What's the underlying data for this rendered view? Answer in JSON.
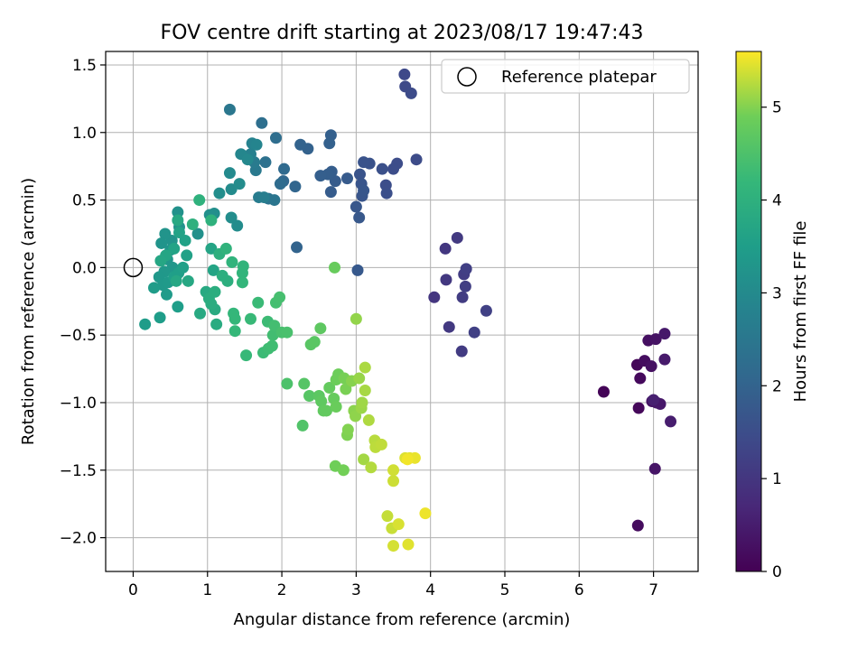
{
  "chart_data": {
    "type": "scatter",
    "title": "FOV centre drift starting at 2023/08/17 19:47:43",
    "xlabel": "Angular distance from reference (arcmin)",
    "ylabel": "Rotation from reference (arcmin)",
    "xlim": [
      -0.37,
      7.6
    ],
    "ylim": [
      -2.25,
      1.6
    ],
    "xticks": [
      0,
      1,
      2,
      3,
      4,
      5,
      6,
      7
    ],
    "yticks": [
      1.5,
      1.0,
      0.5,
      0.0,
      -0.5,
      -1.0,
      -1.5,
      -2.0
    ],
    "xtick_labels": [
      "0",
      "1",
      "2",
      "3",
      "4",
      "5",
      "6",
      "7"
    ],
    "ytick_labels": [
      "1.5",
      "1.0",
      "0.5",
      "0.0",
      "−0.5",
      "−1.0",
      "−1.5",
      "−2.0"
    ],
    "grid": true,
    "legend": {
      "position": "top-right",
      "entries": [
        {
          "label": "Reference platepar",
          "marker": "hollow-circle"
        }
      ]
    },
    "reference_point": {
      "x": 0.0,
      "y": 0.0
    },
    "colorbar": {
      "label": "Hours from first FF file",
      "colormap": "viridis",
      "range": [
        0,
        5.6
      ],
      "ticks": [
        0,
        1,
        2,
        3,
        4,
        5
      ],
      "tick_labels": [
        "0",
        "1",
        "2",
        "3",
        "4",
        "5"
      ]
    },
    "points": [
      {
        "x": 6.33,
        "y": -0.92,
        "h": 0.05
      },
      {
        "x": 6.78,
        "y": -0.72,
        "h": 0.1
      },
      {
        "x": 6.8,
        "y": -1.04,
        "h": 0.12
      },
      {
        "x": 6.82,
        "y": -0.82,
        "h": 0.15
      },
      {
        "x": 6.79,
        "y": -1.91,
        "h": 0.2
      },
      {
        "x": 6.88,
        "y": -0.69,
        "h": 0.22
      },
      {
        "x": 6.93,
        "y": -0.54,
        "h": 0.25
      },
      {
        "x": 6.97,
        "y": -0.73,
        "h": 0.28
      },
      {
        "x": 6.98,
        "y": -0.99,
        "h": 0.3
      },
      {
        "x": 7.03,
        "y": -0.53,
        "h": 0.32
      },
      {
        "x": 7.02,
        "y": -1.49,
        "h": 0.35
      },
      {
        "x": 7.04,
        "y": -1.0,
        "h": 0.38
      },
      {
        "x": 7.09,
        "y": -1.01,
        "h": 0.4
      },
      {
        "x": 7.15,
        "y": -0.49,
        "h": 0.42
      },
      {
        "x": 7.15,
        "y": -0.68,
        "h": 0.45
      },
      {
        "x": 7.23,
        "y": -1.14,
        "h": 0.5
      },
      {
        "x": 7.0,
        "y": -0.98,
        "h": 0.55
      },
      {
        "x": 4.05,
        "y": -0.22,
        "h": 1.0
      },
      {
        "x": 4.2,
        "y": 0.14,
        "h": 1.02
      },
      {
        "x": 4.21,
        "y": -0.09,
        "h": 1.04
      },
      {
        "x": 4.25,
        "y": -0.44,
        "h": 1.06
      },
      {
        "x": 4.36,
        "y": 0.22,
        "h": 1.08
      },
      {
        "x": 4.42,
        "y": -0.62,
        "h": 1.1
      },
      {
        "x": 4.43,
        "y": -0.22,
        "h": 1.12
      },
      {
        "x": 4.45,
        "y": -0.05,
        "h": 1.14
      },
      {
        "x": 4.47,
        "y": -0.14,
        "h": 1.16
      },
      {
        "x": 4.48,
        "y": -0.01,
        "h": 1.18
      },
      {
        "x": 4.59,
        "y": -0.48,
        "h": 1.2
      },
      {
        "x": 4.75,
        "y": -0.32,
        "h": 1.22
      },
      {
        "x": 3.65,
        "y": 1.43,
        "h": 1.4
      },
      {
        "x": 3.66,
        "y": 1.34,
        "h": 1.42
      },
      {
        "x": 3.74,
        "y": 1.29,
        "h": 1.44
      },
      {
        "x": 3.81,
        "y": 0.8,
        "h": 1.46
      },
      {
        "x": 3.55,
        "y": 0.77,
        "h": 1.48
      },
      {
        "x": 3.5,
        "y": 0.73,
        "h": 1.5
      },
      {
        "x": 3.4,
        "y": 0.61,
        "h": 1.52
      },
      {
        "x": 3.41,
        "y": 0.55,
        "h": 1.54
      },
      {
        "x": 3.35,
        "y": 0.73,
        "h": 1.56
      },
      {
        "x": 3.18,
        "y": 0.77,
        "h": 1.6
      },
      {
        "x": 3.1,
        "y": 0.78,
        "h": 1.62
      },
      {
        "x": 3.05,
        "y": 0.69,
        "h": 1.64
      },
      {
        "x": 3.07,
        "y": 0.62,
        "h": 1.66
      },
      {
        "x": 3.08,
        "y": 0.53,
        "h": 1.68
      },
      {
        "x": 3.1,
        "y": 0.57,
        "h": 1.7
      },
      {
        "x": 3.0,
        "y": 0.45,
        "h": 1.72
      },
      {
        "x": 3.04,
        "y": 0.37,
        "h": 1.74
      },
      {
        "x": 3.02,
        "y": -0.02,
        "h": 1.76
      },
      {
        "x": 2.88,
        "y": 0.66,
        "h": 1.8
      },
      {
        "x": 2.72,
        "y": 0.64,
        "h": 1.82
      },
      {
        "x": 2.66,
        "y": 0.56,
        "h": 1.84
      },
      {
        "x": 2.67,
        "y": 0.71,
        "h": 1.86
      },
      {
        "x": 2.62,
        "y": 0.69,
        "h": 1.88
      },
      {
        "x": 2.52,
        "y": 0.68,
        "h": 1.9
      },
      {
        "x": 2.66,
        "y": 0.98,
        "h": 1.92
      },
      {
        "x": 2.64,
        "y": 0.92,
        "h": 1.94
      },
      {
        "x": 2.35,
        "y": 0.88,
        "h": 1.96
      },
      {
        "x": 2.25,
        "y": 0.91,
        "h": 1.98
      },
      {
        "x": 2.2,
        "y": 0.15,
        "h": 2.0
      },
      {
        "x": 2.18,
        "y": 0.6,
        "h": 2.05
      },
      {
        "x": 2.02,
        "y": 0.64,
        "h": 2.1
      },
      {
        "x": 2.03,
        "y": 0.73,
        "h": 2.15
      },
      {
        "x": 1.98,
        "y": 0.62,
        "h": 2.2
      },
      {
        "x": 1.92,
        "y": 0.96,
        "h": 2.25
      },
      {
        "x": 1.73,
        "y": 1.07,
        "h": 2.3
      },
      {
        "x": 1.78,
        "y": 0.78,
        "h": 2.35
      },
      {
        "x": 1.82,
        "y": 0.51,
        "h": 2.4
      },
      {
        "x": 1.9,
        "y": 0.5,
        "h": 2.45
      },
      {
        "x": 1.3,
        "y": 1.17,
        "h": 2.5
      },
      {
        "x": 1.65,
        "y": 0.72,
        "h": 2.55
      },
      {
        "x": 1.63,
        "y": 0.78,
        "h": 2.6
      },
      {
        "x": 1.69,
        "y": 0.52,
        "h": 2.65
      },
      {
        "x": 1.76,
        "y": 0.52,
        "h": 2.7
      },
      {
        "x": 1.58,
        "y": 0.84,
        "h": 2.75
      },
      {
        "x": 1.6,
        "y": 0.92,
        "h": 2.8
      },
      {
        "x": 1.66,
        "y": 0.91,
        "h": 2.85
      },
      {
        "x": 1.45,
        "y": 0.84,
        "h": 2.9
      },
      {
        "x": 1.54,
        "y": 0.8,
        "h": 2.95
      },
      {
        "x": 1.3,
        "y": 0.7,
        "h": 3.0
      },
      {
        "x": 1.32,
        "y": 0.58,
        "h": 3.02
      },
      {
        "x": 1.43,
        "y": 0.62,
        "h": 3.04
      },
      {
        "x": 1.4,
        "y": 0.31,
        "h": 3.06
      },
      {
        "x": 1.32,
        "y": 0.37,
        "h": 3.08
      },
      {
        "x": 1.16,
        "y": 0.55,
        "h": 3.1
      },
      {
        "x": 1.09,
        "y": 0.4,
        "h": 3.12
      },
      {
        "x": 1.03,
        "y": 0.39,
        "h": 3.14
      },
      {
        "x": 0.87,
        "y": 0.25,
        "h": 3.16
      },
      {
        "x": 0.6,
        "y": 0.41,
        "h": 3.18
      },
      {
        "x": 0.62,
        "y": 0.3,
        "h": 3.2
      },
      {
        "x": 0.52,
        "y": 0.2,
        "h": 3.22
      },
      {
        "x": 0.43,
        "y": 0.25,
        "h": 3.24
      },
      {
        "x": 0.38,
        "y": 0.18,
        "h": 3.26
      },
      {
        "x": 0.5,
        "y": 0.13,
        "h": 3.28
      },
      {
        "x": 0.46,
        "y": 0.06,
        "h": 3.3
      },
      {
        "x": 0.53,
        "y": 0.0,
        "h": 3.32
      },
      {
        "x": 0.42,
        "y": -0.03,
        "h": 3.34
      },
      {
        "x": 0.35,
        "y": -0.07,
        "h": 3.36
      },
      {
        "x": 0.4,
        "y": -0.13,
        "h": 3.38
      },
      {
        "x": 0.47,
        "y": -0.11,
        "h": 3.4
      },
      {
        "x": 0.45,
        "y": -0.2,
        "h": 3.42
      },
      {
        "x": 0.28,
        "y": -0.15,
        "h": 3.44
      },
      {
        "x": 0.16,
        "y": -0.42,
        "h": 3.46
      },
      {
        "x": 0.36,
        "y": -0.37,
        "h": 3.48
      },
      {
        "x": 0.6,
        "y": -0.29,
        "h": 3.5
      },
      {
        "x": 0.55,
        "y": -0.07,
        "h": 3.52
      },
      {
        "x": 0.61,
        "y": -0.04,
        "h": 3.54
      },
      {
        "x": 0.67,
        "y": 0.0,
        "h": 3.56
      },
      {
        "x": 0.72,
        "y": 0.09,
        "h": 3.58
      },
      {
        "x": 0.7,
        "y": 0.2,
        "h": 3.6
      },
      {
        "x": 0.62,
        "y": 0.26,
        "h": 3.62
      },
      {
        "x": 0.55,
        "y": 0.14,
        "h": 3.64
      },
      {
        "x": 1.08,
        "y": -0.02,
        "h": 3.66
      },
      {
        "x": 1.05,
        "y": 0.14,
        "h": 3.68
      },
      {
        "x": 0.44,
        "y": 0.09,
        "h": 3.7
      },
      {
        "x": 0.37,
        "y": 0.05,
        "h": 3.72
      },
      {
        "x": 0.58,
        "y": -0.1,
        "h": 3.74
      },
      {
        "x": 0.74,
        "y": -0.1,
        "h": 3.76
      },
      {
        "x": 0.6,
        "y": 0.35,
        "h": 3.78
      },
      {
        "x": 0.98,
        "y": -0.18,
        "h": 3.8
      },
      {
        "x": 0.9,
        "y": -0.34,
        "h": 3.82
      },
      {
        "x": 1.1,
        "y": -0.31,
        "h": 3.84
      },
      {
        "x": 1.12,
        "y": -0.42,
        "h": 3.86
      },
      {
        "x": 1.02,
        "y": -0.23,
        "h": 3.88
      },
      {
        "x": 1.05,
        "y": -0.27,
        "h": 3.9
      },
      {
        "x": 1.1,
        "y": -0.18,
        "h": 3.92
      },
      {
        "x": 1.2,
        "y": -0.06,
        "h": 3.94
      },
      {
        "x": 1.27,
        "y": -0.1,
        "h": 3.96
      },
      {
        "x": 1.16,
        "y": 0.1,
        "h": 3.98
      },
      {
        "x": 0.8,
        "y": 0.32,
        "h": 4.0
      },
      {
        "x": 1.05,
        "y": 0.35,
        "h": 4.02
      },
      {
        "x": 0.89,
        "y": 0.5,
        "h": 4.04
      },
      {
        "x": 1.25,
        "y": 0.14,
        "h": 4.06
      },
      {
        "x": 1.33,
        "y": 0.04,
        "h": 4.08
      },
      {
        "x": 1.48,
        "y": 0.01,
        "h": 4.1
      },
      {
        "x": 1.47,
        "y": -0.04,
        "h": 4.12
      },
      {
        "x": 1.47,
        "y": -0.11,
        "h": 4.14
      },
      {
        "x": 1.35,
        "y": -0.34,
        "h": 4.16
      },
      {
        "x": 1.37,
        "y": -0.38,
        "h": 4.18
      },
      {
        "x": 1.37,
        "y": -0.47,
        "h": 4.2
      },
      {
        "x": 1.52,
        "y": -0.65,
        "h": 4.22
      },
      {
        "x": 1.58,
        "y": -0.38,
        "h": 4.24
      },
      {
        "x": 1.68,
        "y": -0.26,
        "h": 4.26
      },
      {
        "x": 1.75,
        "y": -0.63,
        "h": 4.28
      },
      {
        "x": 1.81,
        "y": -0.4,
        "h": 4.3
      },
      {
        "x": 1.82,
        "y": -0.6,
        "h": 4.32
      },
      {
        "x": 1.87,
        "y": -0.58,
        "h": 4.34
      },
      {
        "x": 1.88,
        "y": -0.5,
        "h": 4.36
      },
      {
        "x": 1.9,
        "y": -0.43,
        "h": 4.38
      },
      {
        "x": 1.92,
        "y": -0.26,
        "h": 4.4
      },
      {
        "x": 1.97,
        "y": -0.22,
        "h": 4.42
      },
      {
        "x": 2.0,
        "y": -0.48,
        "h": 4.44
      },
      {
        "x": 2.07,
        "y": -0.48,
        "h": 4.46
      },
      {
        "x": 2.07,
        "y": -0.86,
        "h": 4.5
      },
      {
        "x": 2.28,
        "y": -1.17,
        "h": 4.55
      },
      {
        "x": 2.3,
        "y": -0.86,
        "h": 4.6
      },
      {
        "x": 2.37,
        "y": -0.95,
        "h": 4.62
      },
      {
        "x": 2.39,
        "y": -0.57,
        "h": 4.64
      },
      {
        "x": 2.44,
        "y": -0.55,
        "h": 4.66
      },
      {
        "x": 2.5,
        "y": -0.95,
        "h": 4.68
      },
      {
        "x": 2.52,
        "y": -0.45,
        "h": 4.7
      },
      {
        "x": 2.53,
        "y": -0.99,
        "h": 4.72
      },
      {
        "x": 2.56,
        "y": -1.06,
        "h": 4.74
      },
      {
        "x": 2.6,
        "y": -1.06,
        "h": 4.76
      },
      {
        "x": 2.64,
        "y": -0.89,
        "h": 4.78
      },
      {
        "x": 2.7,
        "y": -0.97,
        "h": 4.8
      },
      {
        "x": 2.71,
        "y": 0.0,
        "h": 4.82
      },
      {
        "x": 2.73,
        "y": -1.03,
        "h": 4.84
      },
      {
        "x": 2.73,
        "y": -0.83,
        "h": 4.86
      },
      {
        "x": 2.76,
        "y": -0.79,
        "h": 4.88
      },
      {
        "x": 2.72,
        "y": -1.47,
        "h": 4.9
      },
      {
        "x": 2.83,
        "y": -1.5,
        "h": 4.92
      },
      {
        "x": 2.84,
        "y": -0.82,
        "h": 4.94
      },
      {
        "x": 2.86,
        "y": -0.9,
        "h": 4.96
      },
      {
        "x": 2.88,
        "y": -1.24,
        "h": 4.98
      },
      {
        "x": 2.89,
        "y": -1.2,
        "h": 5.0
      },
      {
        "x": 2.94,
        "y": -0.84,
        "h": 5.02
      },
      {
        "x": 2.97,
        "y": -1.06,
        "h": 5.04
      },
      {
        "x": 2.99,
        "y": -1.1,
        "h": 5.06
      },
      {
        "x": 3.0,
        "y": -0.38,
        "h": 5.08
      },
      {
        "x": 3.04,
        "y": -0.82,
        "h": 5.1
      },
      {
        "x": 3.07,
        "y": -1.04,
        "h": 5.12
      },
      {
        "x": 3.08,
        "y": -1.0,
        "h": 5.14
      },
      {
        "x": 3.1,
        "y": -1.42,
        "h": 5.16
      },
      {
        "x": 3.12,
        "y": -0.91,
        "h": 5.18
      },
      {
        "x": 3.12,
        "y": -0.74,
        "h": 5.2
      },
      {
        "x": 3.17,
        "y": -1.13,
        "h": 5.22
      },
      {
        "x": 3.2,
        "y": -1.48,
        "h": 5.24
      },
      {
        "x": 3.25,
        "y": -1.28,
        "h": 5.26
      },
      {
        "x": 3.26,
        "y": -1.33,
        "h": 5.28
      },
      {
        "x": 3.34,
        "y": -1.31,
        "h": 5.3
      },
      {
        "x": 3.42,
        "y": -1.84,
        "h": 5.32
      },
      {
        "x": 3.48,
        "y": -1.93,
        "h": 5.34
      },
      {
        "x": 3.5,
        "y": -1.58,
        "h": 5.36
      },
      {
        "x": 3.5,
        "y": -1.5,
        "h": 5.38
      },
      {
        "x": 3.5,
        "y": -2.06,
        "h": 5.4
      },
      {
        "x": 3.57,
        "y": -1.9,
        "h": 5.42
      },
      {
        "x": 3.66,
        "y": -1.41,
        "h": 5.44
      },
      {
        "x": 3.7,
        "y": -2.05,
        "h": 5.46
      },
      {
        "x": 3.72,
        "y": -1.41,
        "h": 5.48
      },
      {
        "x": 3.79,
        "y": -1.41,
        "h": 5.5
      },
      {
        "x": 3.93,
        "y": -1.82,
        "h": 5.52
      },
      {
        "x": 3.69,
        "y": -1.42,
        "h": 5.54
      }
    ]
  }
}
